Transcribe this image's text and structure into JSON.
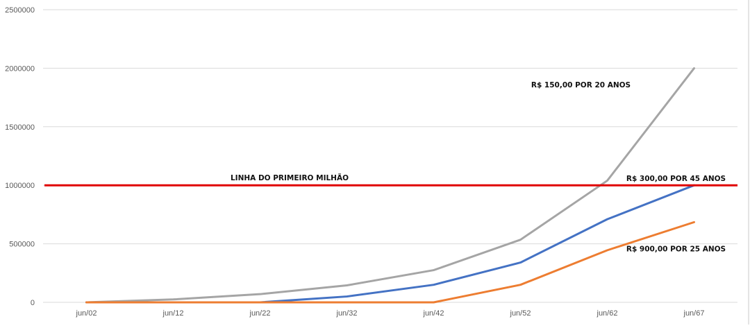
{
  "chart_data": {
    "type": "line",
    "categories": [
      "jun/02",
      "jun/12",
      "jun/22",
      "jun/32",
      "jun/42",
      "jun/52",
      "jun/62",
      "jun/67"
    ],
    "ylim": [
      0,
      2500000
    ],
    "y_ticks": [
      {
        "value": 0,
        "label": "0"
      },
      {
        "value": 500000,
        "label": "500000"
      },
      {
        "value": 1000000,
        "label": "1000000"
      },
      {
        "value": 1500000,
        "label": "1500000"
      },
      {
        "value": 2000000,
        "label": "2000000"
      },
      {
        "value": 2500000,
        "label": "2500000"
      }
    ],
    "grid": true,
    "legend": "none",
    "series": [
      {
        "key": "gray",
        "color": "#a5a5a5",
        "values": [
          0,
          25000,
          70000,
          145000,
          275000,
          535000,
          1040000,
          2000000
        ]
      },
      {
        "key": "blue",
        "color": "#4472c4",
        "values": [
          0,
          0,
          0,
          50000,
          150000,
          340000,
          710000,
          1000000
        ]
      },
      {
        "key": "orange",
        "color": "#ed7d31",
        "values": [
          0,
          0,
          0,
          0,
          0,
          150000,
          445000,
          685000
        ]
      }
    ],
    "reference_line": {
      "value": 1000000,
      "color": "#e00000",
      "label": "LINHA DO PRIMEIRO MILHÃO"
    },
    "annotations": [
      {
        "key": "gray",
        "text": "R$ 150,00 POR 20 ANOS",
        "anchor": {
          "category": "jun/62",
          "value": 1860000
        }
      },
      {
        "key": "blue",
        "text": "R$ 300,00 POR 45 ANOS",
        "anchor": {
          "category": "jun/67",
          "value": 1060000
        }
      },
      {
        "key": "orange",
        "text": "R$ 900,00 POR 25 ANOS",
        "anchor": {
          "category": "jun/67",
          "value": 460000
        }
      }
    ]
  }
}
